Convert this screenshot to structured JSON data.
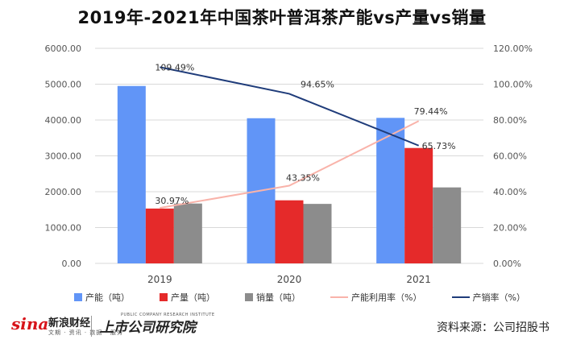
{
  "title": "2019年-2021年中国茶叶普洱茶产能vs产量vs销量",
  "chart_data": {
    "type": "bar",
    "categories": [
      "2019",
      "2020",
      "2021"
    ],
    "series": [
      {
        "name": "产能（吨）",
        "kind": "bar",
        "axis": "left",
        "color": "#6195f7",
        "values": [
          4950,
          4050,
          4060
        ]
      },
      {
        "name": "产量（吨）",
        "kind": "bar",
        "axis": "left",
        "color": "#e52a2a",
        "values": [
          1530,
          1760,
          3220
        ]
      },
      {
        "name": "销量（吨）",
        "kind": "bar",
        "axis": "left",
        "color": "#8c8c8c",
        "values": [
          1670,
          1660,
          2120
        ]
      },
      {
        "name": "产能利用率（%）",
        "kind": "line",
        "axis": "right",
        "color": "#f9b3aa",
        "values": [
          30.97,
          43.35,
          79.44
        ],
        "labels": [
          "30.97%",
          "43.35%",
          "79.44%"
        ]
      },
      {
        "name": "产销率（%）",
        "kind": "line",
        "axis": "right",
        "color": "#1f3c7a",
        "values": [
          109.49,
          94.65,
          65.73
        ],
        "labels": [
          "109.49%",
          "94.65%",
          "65.73%"
        ]
      }
    ],
    "y_left": {
      "min": 0,
      "max": 6000,
      "ticks": [
        "0.00",
        "1000.00",
        "2000.00",
        "3000.00",
        "4000.00",
        "5000.00",
        "6000.00"
      ]
    },
    "y_right": {
      "min": 0,
      "max": 120,
      "ticks": [
        "0.00%",
        "20.00%",
        "40.00%",
        "60.00%",
        "80.00%",
        "100.00%",
        "120.00%"
      ]
    },
    "grid": true,
    "legend_position": "bottom"
  },
  "footer": {
    "sina_logo": "sina",
    "sina_cn": "新浪财经",
    "sina_sub": "文期 · 资讯 · 数据 · 服务",
    "institute_logo": "上市公司研究院",
    "institute_en": "PUBLIC COMPANY RESEARCH INSTITUTE",
    "source": "资料来源：公司招股书"
  }
}
